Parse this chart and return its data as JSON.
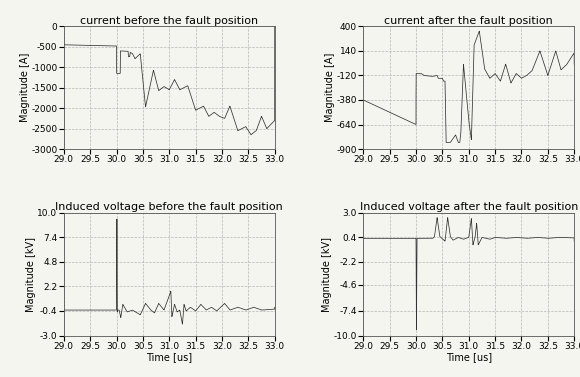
{
  "title_tl": "current before the fault position",
  "title_tr": "current after the fault position",
  "title_bl": "Induced voltage before the fault position",
  "title_br": "Induced voltage after the fault position",
  "ylabel_tl": "Magnitude [A]",
  "ylabel_tr": "Magnitude [A]",
  "ylabel_bl": "Magnitude [kV]",
  "ylabel_br": "Magnitude [kV]",
  "xlabel": "Time [us]",
  "xlim": [
    29.0,
    33.0
  ],
  "ylim_tl": [
    -3000,
    0
  ],
  "ylim_tr": [
    -900,
    400
  ],
  "ylim_bl": [
    -3.0,
    10.0
  ],
  "ylim_br": [
    -10.0,
    3.0
  ],
  "xticks": [
    29.0,
    29.5,
    30.0,
    30.5,
    31.0,
    31.5,
    32.0,
    32.5,
    33.0
  ],
  "xtick_labels": [
    "29.0",
    "29.5",
    "30.0",
    "30.5",
    "31.0",
    "31.5",
    "32.0",
    "32.5",
    "33.0"
  ],
  "yticks_tl": [
    0,
    -500,
    -1000,
    -1500,
    -2000,
    -2500,
    -3000
  ],
  "ytick_labels_tl": [
    "0",
    "-500",
    "-1000",
    "-1500",
    "-2000",
    "-2500",
    "-3000"
  ],
  "yticks_tr": [
    400,
    140,
    -120,
    -380,
    -640,
    -900
  ],
  "ytick_labels_tr": [
    "400",
    "140",
    "-120",
    "-380",
    "-640",
    "-900"
  ],
  "yticks_bl": [
    10.0,
    7.4,
    4.8,
    2.2,
    -0.4,
    -3.0
  ],
  "ytick_labels_bl": [
    "10.0",
    "7.4",
    "4.8",
    "2.2",
    "-0.4",
    "-3.0"
  ],
  "yticks_br": [
    3.0,
    0.4,
    -2.2,
    -4.6,
    -7.4,
    -10.0
  ],
  "ytick_labels_br": [
    "3.0",
    "0.4",
    "-2.2",
    "-4.6",
    "-7.4",
    "-10.0"
  ],
  "line_color": "#333333",
  "background_color": "#f5f5f0",
  "grid_color": "#b0b0b0",
  "title_fontsize": 8,
  "label_fontsize": 7,
  "tick_fontsize": 6.5
}
